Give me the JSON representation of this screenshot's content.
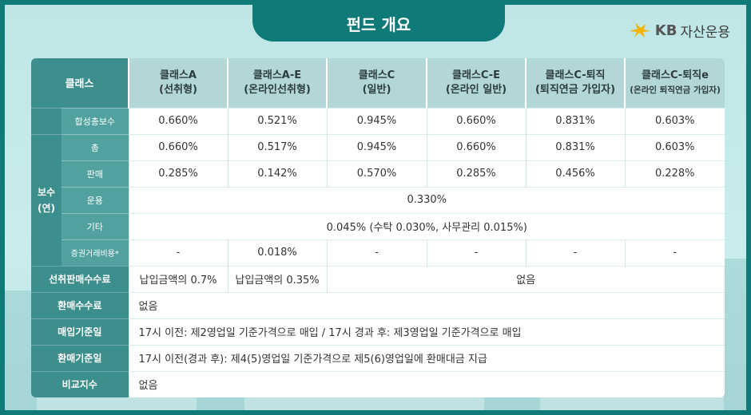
{
  "title": "펀드 개요",
  "logo": {
    "brand": "KB",
    "text": "자산운용"
  },
  "colors": {
    "teal_dark": "#0f7a78",
    "teal_label": "#3d8f8d",
    "header_cell": "#b3d6d6",
    "logo_yellow": "#f5b400"
  },
  "table": {
    "class_header": "클래스",
    "classes": [
      {
        "line1": "클래스A",
        "line2": "(선취형)"
      },
      {
        "line1": "클래스A-E",
        "line2": "(온라인선취형)"
      },
      {
        "line1": "클래스C",
        "line2": "(일반)"
      },
      {
        "line1": "클래스C-E",
        "line2": "(온라인 일반)"
      },
      {
        "line1": "클래스C-퇴직",
        "line2": "(퇴직연금 가입자)"
      },
      {
        "line1": "클래스C-퇴직e",
        "line2": "(온라인 퇴직연금 가입자)"
      }
    ],
    "fee_label": "보수\n(연)",
    "total_fee": {
      "label": "합성총보수",
      "values": [
        "0.660%",
        "0.521%",
        "0.945%",
        "0.660%",
        "0.831%",
        "0.603%"
      ]
    },
    "total": {
      "label": "총",
      "values": [
        "0.660%",
        "0.517%",
        "0.945%",
        "0.660%",
        "0.831%",
        "0.603%"
      ]
    },
    "sales": {
      "label": "판매",
      "values": [
        "0.285%",
        "0.142%",
        "0.570%",
        "0.285%",
        "0.456%",
        "0.228%"
      ]
    },
    "management": {
      "label": "운용",
      "value": "0.330%"
    },
    "other": {
      "label": "기타",
      "value": "0.045% (수탁 0.030%, 사무관리 0.015%)"
    },
    "securities": {
      "label": "증권거래비용*",
      "values": [
        "-",
        "0.018%",
        "-",
        "-",
        "-",
        "-"
      ]
    },
    "front_load": {
      "label": "선취판매수수료",
      "a": "납입금액의 0.7%",
      "ae": "납입금액의 0.35%",
      "rest": "없음"
    },
    "redemption_fee": {
      "label": "환매수수료",
      "value": "없음"
    },
    "purchase_date": {
      "label": "매입기준일",
      "value": "17시 이전: 제2영업일 기준가격으로 매입 / 17시 경과 후: 제3영업일 기준가격으로 매입"
    },
    "redemption_date": {
      "label": "환매기준일",
      "value": "17시 이전(경과 후): 제4(5)영업일 기준가격으로 제5(6)영업일에 환매대금 지급"
    },
    "benchmark": {
      "label": "비교지수",
      "value": "없음"
    }
  }
}
